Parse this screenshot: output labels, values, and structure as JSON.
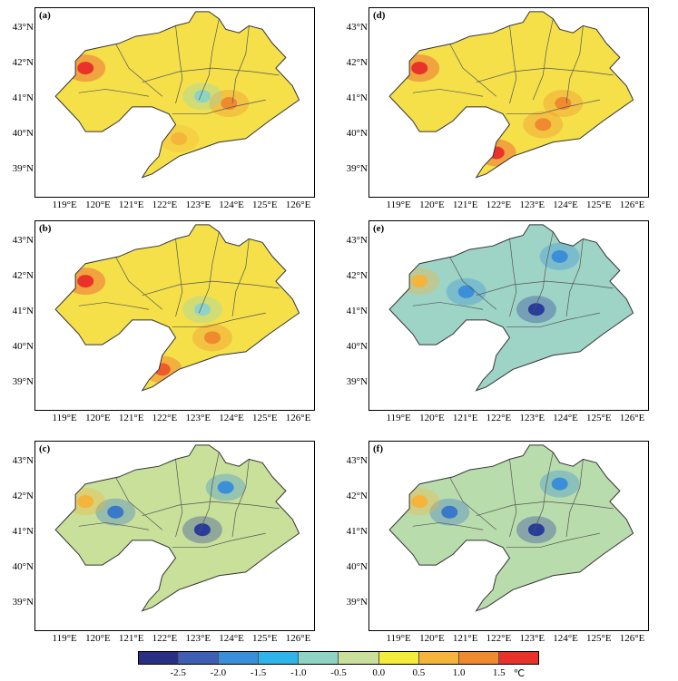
{
  "panels": [
    {
      "label": "(a)",
      "fill": "#f5e04a",
      "spots": [
        {
          "lon": 119.6,
          "lat": 41.9,
          "c": "#e8322a"
        },
        {
          "lon": 123.9,
          "lat": 40.9,
          "c": "#ef8a2e"
        },
        {
          "lon": 123.1,
          "lat": 41.1,
          "c": "#8fd3c5"
        },
        {
          "lon": 122.4,
          "lat": 39.9,
          "c": "#f5b43a"
        }
      ]
    },
    {
      "label": "(b)",
      "fill": "#f5e04a",
      "spots": [
        {
          "lon": 119.6,
          "lat": 41.9,
          "c": "#e8322a"
        },
        {
          "lon": 121.9,
          "lat": 39.4,
          "c": "#ef5a2a"
        },
        {
          "lon": 123.4,
          "lat": 40.3,
          "c": "#ef8a2e"
        },
        {
          "lon": 123.1,
          "lat": 41.1,
          "c": "#8fd3c5"
        }
      ]
    },
    {
      "label": "(c)",
      "fill": "#c8e09a",
      "spots": [
        {
          "lon": 123.1,
          "lat": 41.1,
          "c": "#2a3c9a"
        },
        {
          "lon": 120.5,
          "lat": 41.6,
          "c": "#3a78c8"
        },
        {
          "lon": 123.8,
          "lat": 42.3,
          "c": "#3a8fd8"
        },
        {
          "lon": 119.6,
          "lat": 41.9,
          "c": "#f5b43a"
        }
      ]
    },
    {
      "label": "(d)",
      "fill": "#f5e04a",
      "spots": [
        {
          "lon": 119.6,
          "lat": 41.9,
          "c": "#e8322a"
        },
        {
          "lon": 121.9,
          "lat": 39.5,
          "c": "#e8322a"
        },
        {
          "lon": 123.3,
          "lat": 40.3,
          "c": "#ef8a2e"
        },
        {
          "lon": 123.9,
          "lat": 40.9,
          "c": "#ef8a2e"
        }
      ]
    },
    {
      "label": "(e)",
      "fill": "#9dd4c6",
      "spots": [
        {
          "lon": 123.1,
          "lat": 41.1,
          "c": "#2a3c9a"
        },
        {
          "lon": 121.0,
          "lat": 41.6,
          "c": "#3a8fd8"
        },
        {
          "lon": 123.8,
          "lat": 42.6,
          "c": "#3a8fd8"
        },
        {
          "lon": 119.6,
          "lat": 41.9,
          "c": "#f5b43a"
        }
      ]
    },
    {
      "label": "(f)",
      "fill": "#b8dcac",
      "spots": [
        {
          "lon": 123.1,
          "lat": 41.1,
          "c": "#2a3c9a"
        },
        {
          "lon": 120.5,
          "lat": 41.6,
          "c": "#3a78c8"
        },
        {
          "lon": 123.8,
          "lat": 42.4,
          "c": "#3a8fd8"
        },
        {
          "lon": 119.6,
          "lat": 41.9,
          "c": "#f5b43a"
        }
      ]
    }
  ],
  "axes": {
    "lat_labels": [
      "43°N",
      "42°N",
      "41°N",
      "40°N",
      "39°N"
    ],
    "lon_labels": [
      "119°E",
      "120°E",
      "121°E",
      "122°E",
      "123°E",
      "124°E",
      "125°E",
      "126°E"
    ]
  },
  "colorbar": {
    "colors": [
      "#2a2f86",
      "#3f5fb4",
      "#3a8fd8",
      "#2db4e8",
      "#8fd3c5",
      "#c8e09a",
      "#f5ec3a",
      "#f5b43a",
      "#ef8a2e",
      "#e8322a"
    ],
    "tick_labels": [
      "-2.5",
      "-2.0",
      "-1.5",
      "-1.0",
      "-0.5",
      "0.0",
      "0.5",
      "1.0",
      "1.5",
      "℃"
    ]
  }
}
